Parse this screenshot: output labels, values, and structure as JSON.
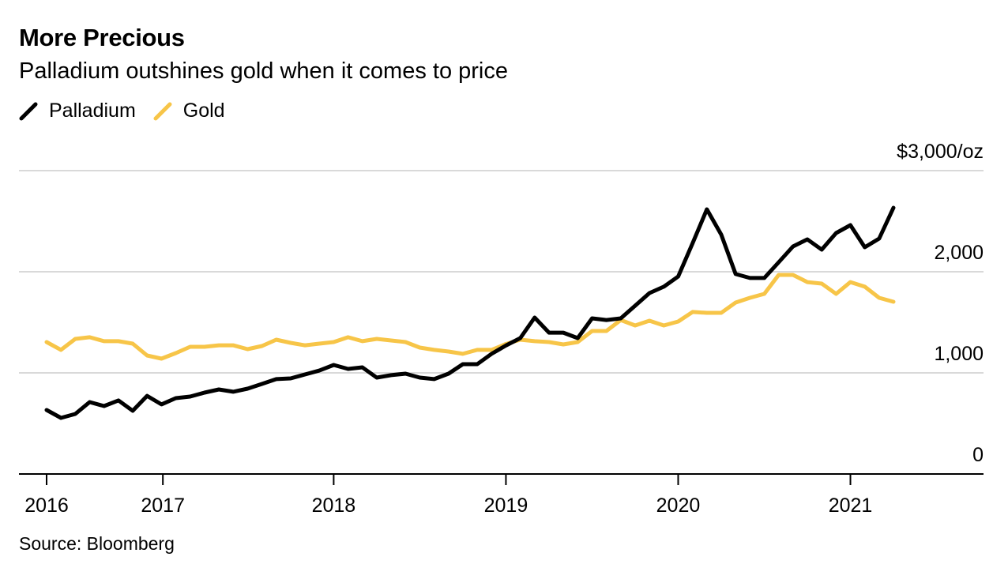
{
  "chart_data": {
    "type": "line",
    "title": "More Precious",
    "subtitle": "Palladium outshines gold when it comes to price",
    "source": "Source: Bloomberg",
    "xlabel": "",
    "ylabel": "$/oz",
    "y_unit_label": "$3,000/oz",
    "ylim": [
      0,
      3000
    ],
    "yticks": [
      {
        "value": 0,
        "label": "0"
      },
      {
        "value": 1000,
        "label": "1,000"
      },
      {
        "value": 2000,
        "label": "2,000"
      },
      {
        "value": 3000,
        "label": "$3,000/oz"
      }
    ],
    "x_start": "2016-05",
    "x_interval": "monthly",
    "xlim_index": [
      -1.95,
      65.3
    ],
    "xticks": [
      {
        "index": 0,
        "label": "2016"
      },
      {
        "index": 8.1,
        "label": "2017"
      },
      {
        "index": 20,
        "label": "2018"
      },
      {
        "index": 32,
        "label": "2019"
      },
      {
        "index": 44,
        "label": "2020"
      },
      {
        "index": 56,
        "label": "2021"
      }
    ],
    "grid": true,
    "legend_position": "top-left",
    "series": [
      {
        "name": "Palladium",
        "color": "#000000",
        "values": [
          633,
          555,
          594,
          711,
          672,
          727,
          625,
          773,
          688,
          750,
          766,
          805,
          836,
          813,
          844,
          891,
          938,
          945,
          984,
          1023,
          1078,
          1039,
          1055,
          953,
          977,
          992,
          953,
          938,
          992,
          1086,
          1086,
          1188,
          1270,
          1344,
          1547,
          1398,
          1398,
          1344,
          1539,
          1523,
          1539,
          1664,
          1789,
          1852,
          1953,
          2281,
          2617,
          2367,
          1977,
          1938,
          1938,
          2094,
          2250,
          2320,
          2219,
          2383,
          2461,
          2242,
          2328,
          2633
        ]
      },
      {
        "name": "Gold",
        "color": "#f7c548",
        "values": [
          1305,
          1227,
          1336,
          1352,
          1313,
          1313,
          1289,
          1172,
          1141,
          1195,
          1258,
          1258,
          1273,
          1273,
          1234,
          1266,
          1328,
          1297,
          1273,
          1289,
          1305,
          1352,
          1313,
          1336,
          1320,
          1305,
          1250,
          1227,
          1211,
          1188,
          1227,
          1227,
          1285,
          1328,
          1313,
          1305,
          1281,
          1305,
          1414,
          1414,
          1523,
          1469,
          1516,
          1469,
          1508,
          1602,
          1594,
          1594,
          1695,
          1742,
          1781,
          1969,
          1969,
          1898,
          1883,
          1781,
          1898,
          1852,
          1742,
          1703
        ]
      }
    ]
  }
}
